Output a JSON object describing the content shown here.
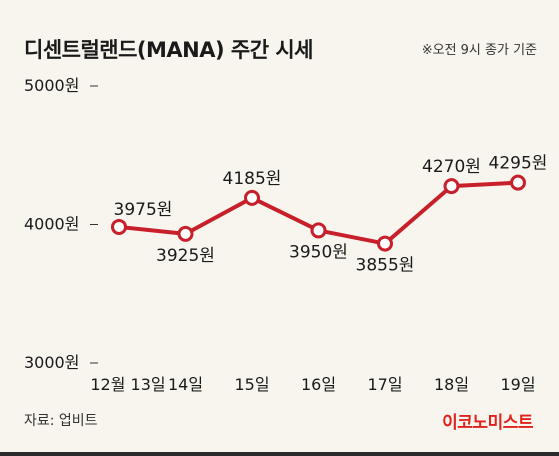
{
  "header": {
    "title": "디센트럴랜드(MANA) 주간 시세",
    "note": "※오전 9시 종가 기준"
  },
  "footer": {
    "source": "자료: 업비트",
    "brand": "이코노미스트"
  },
  "colors": {
    "background": "#f7f5ee",
    "line": "#c8202a",
    "marker_fill": "#ffffff",
    "brand": "#e0221c"
  },
  "chart_data": {
    "type": "line",
    "title": "디센트럴랜드(MANA) 주간 시세",
    "xlabel": "",
    "ylabel": "",
    "categories": [
      "12월 13일",
      "14일",
      "15일",
      "16일",
      "17일",
      "18일",
      "19일"
    ],
    "series": [
      {
        "values": [
          3975,
          3925,
          4185,
          3950,
          3855,
          4270,
          4295
        ],
        "data_labels": [
          "3975원",
          "3925원",
          "4185원",
          "3950원",
          "3855원",
          "4270원",
          "4295원"
        ]
      }
    ],
    "ylim": [
      3000,
      5000
    ],
    "y_ticks": [
      5000,
      4000,
      3000
    ],
    "y_tick_labels": [
      "5000원",
      "4000원",
      "3000원"
    ],
    "grid": false,
    "legend": "none"
  }
}
